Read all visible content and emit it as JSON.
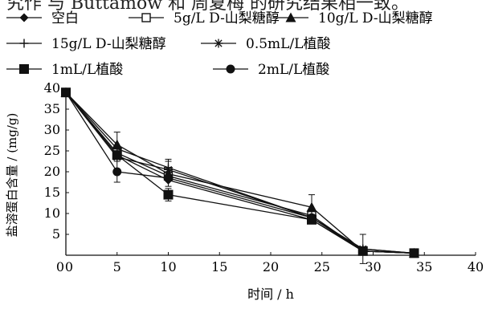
{
  "top_text_fragment": "究作 与 Buttamow 和 周夏梅 的研究结果相一致。",
  "chart_data": {
    "type": "line",
    "xlabel": "时间 / h",
    "ylabel": "盐溶蛋白含量 / (mg/g)",
    "xlim": [
      0,
      40
    ],
    "ylim": [
      0,
      40
    ],
    "xticks": [
      0,
      5,
      10,
      15,
      20,
      25,
      30,
      35,
      40
    ],
    "yticks": [
      0,
      5,
      10,
      15,
      20,
      25,
      30,
      35,
      40
    ],
    "legend_placement": "top",
    "grid": false,
    "x": [
      0,
      5,
      10,
      24,
      29,
      34
    ],
    "series": [
      {
        "name": "空白",
        "marker": "diamond",
        "values": [
          39,
          24,
          18,
          8.5,
          1,
          0.5
        ],
        "error": [
          0,
          0,
          0,
          0,
          0,
          0
        ]
      },
      {
        "name": "5g/L D-山梨糖醇",
        "marker": "square-open",
        "values": [
          39,
          24.5,
          19,
          9.5,
          1,
          0.5
        ],
        "error": [
          0,
          0,
          0,
          0,
          0,
          0
        ]
      },
      {
        "name": "10g/L D-山梨糖醇",
        "marker": "triangle",
        "values": [
          39,
          26.5,
          19.5,
          11.5,
          1,
          0.5
        ],
        "error": [
          0,
          3,
          3,
          3,
          0,
          0
        ]
      },
      {
        "name": "15g/L D-山梨糖醇",
        "marker": "plus",
        "values": [
          39,
          25.5,
          21,
          9,
          1.5,
          0.5
        ],
        "error": [
          0,
          0,
          2,
          0,
          3.5,
          0
        ]
      },
      {
        "name": "0.5mL/L植酸",
        "marker": "star",
        "values": [
          39,
          23.5,
          20.5,
          9,
          1.5,
          0.5
        ],
        "error": [
          0,
          0,
          0,
          0,
          0,
          0
        ]
      },
      {
        "name": "1mL/L植酸",
        "marker": "square-filled",
        "values": [
          39,
          24,
          14.5,
          8.5,
          1,
          0.5
        ],
        "error": [
          0,
          0,
          1.5,
          0,
          0,
          0
        ]
      },
      {
        "name": "2mL/L植酸",
        "marker": "circle",
        "values": [
          39,
          20,
          18.5,
          9,
          1,
          0.5
        ],
        "error": [
          0,
          2.5,
          0,
          0,
          0,
          0
        ]
      }
    ]
  }
}
